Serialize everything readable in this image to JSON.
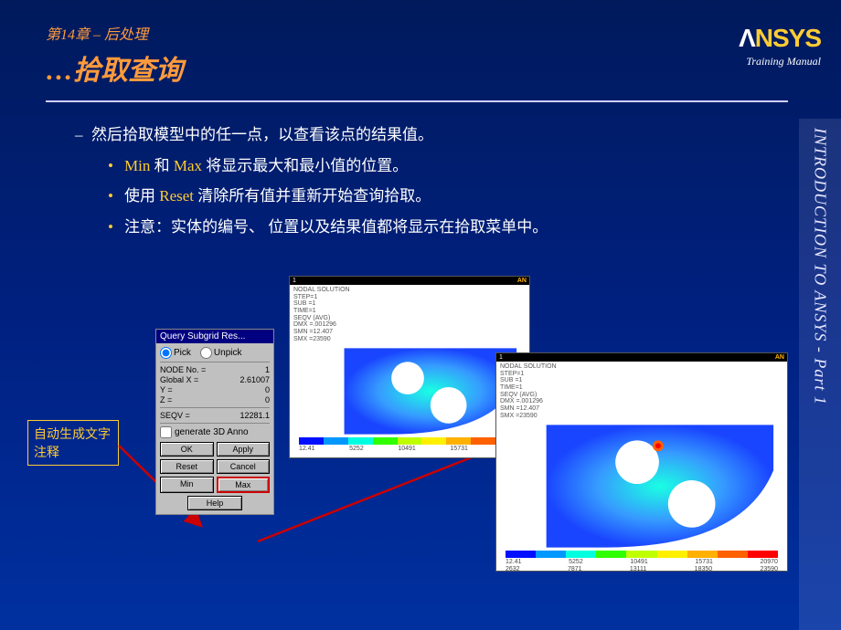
{
  "header": {
    "chapter": "第14章 – 后处理",
    "subtitle": "…拾取查询"
  },
  "logo": {
    "brand_prefix": "Λ",
    "brand_main": "NSYS",
    "tagline": "Training Manual"
  },
  "sidebar_text": "INTRODUCTION TO ANSYS - Part 1",
  "bullets": {
    "main": "然后拾取模型中的任一点，以查看该点的结果值。",
    "b1_pre": "",
    "b1_min": "Min",
    "b1_mid": " 和 ",
    "b1_max": "Max",
    "b1_post": " 将显示最大和最小值的位置。",
    "b2_pre": "使用 ",
    "b2_kw": "Reset",
    "b2_post": " 清除所有值并重新开始查询拾取。",
    "b3": "注意：实体的编号、 位置以及结果值都将显示在拾取菜单中。"
  },
  "annotation_box": "自动生成文字注释",
  "dialog": {
    "title": "Query Subgrid Res...",
    "pick": "Pick",
    "unpick": "Unpick",
    "rows": {
      "node_no": {
        "label": "NODE No. =",
        "value": "1"
      },
      "gx": {
        "label": "Global X =",
        "value": "2.61007"
      },
      "y": {
        "label": "Y =",
        "value": "0"
      },
      "z": {
        "label": "Z =",
        "value": "0"
      },
      "seqv": {
        "label": "SEQV =",
        "value": "12281.1"
      }
    },
    "generate3d": "generate 3D Anno",
    "buttons": {
      "ok": "OK",
      "apply": "Apply",
      "reset": "Reset",
      "cancel": "Cancel",
      "min": "Min",
      "max": "Max",
      "help": "Help"
    }
  },
  "shot_meta": {
    "line1": "NODAL SOLUTION",
    "line2": "STEP=1",
    "line3": "SUB =1",
    "line4": "TIME=1",
    "line5": "SEQV   (AVG)",
    "line6": "DMX =.001296",
    "line7": "SMN =12.407",
    "line8": "SMX =23590"
  },
  "legend": {
    "colors": [
      "#0010ff",
      "#0098ff",
      "#00ffe0",
      "#30ff00",
      "#c0ff00",
      "#fff000",
      "#ffb000",
      "#ff6000",
      "#ff0000"
    ],
    "top_ticks": [
      "12.41",
      "5252",
      "10491",
      "15731",
      "20970"
    ],
    "bot_ticks": [
      "2632",
      "7871",
      "13111",
      "18350",
      "23590"
    ]
  },
  "arrow_color": "#cc0000"
}
